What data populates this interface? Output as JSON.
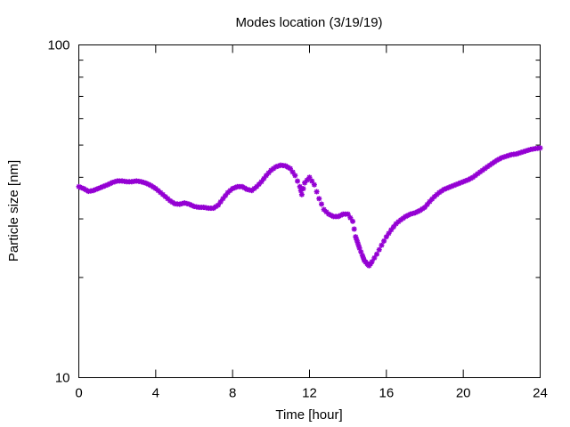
{
  "chart_data": {
    "type": "scatter",
    "title": "Modes location (3/19/19)",
    "xlabel": "Time [hour]",
    "ylabel": "Particle size [nm]",
    "xlim": [
      0,
      24
    ],
    "ylim": [
      10,
      100
    ],
    "yscale": "log",
    "grid": false,
    "legend": "none",
    "x_ticks": [
      0,
      4,
      8,
      12,
      16,
      20,
      24
    ],
    "y_ticks": [
      10,
      100
    ],
    "marker_color": "#9400d3",
    "series": [
      {
        "x": [
          0.0,
          0.25,
          0.5,
          0.75,
          1.0,
          1.25,
          1.5,
          1.75,
          2.0,
          2.25,
          2.5,
          2.75,
          3.0,
          3.25,
          3.5,
          3.75,
          4.0,
          4.25,
          4.5,
          4.75,
          5.0,
          5.25,
          5.5,
          5.75,
          6.0,
          6.25,
          6.5,
          6.75,
          7.0,
          7.25,
          7.5,
          7.75,
          8.0,
          8.25,
          8.5,
          8.75,
          9.0,
          9.25,
          9.5,
          9.75,
          10.0,
          10.25,
          10.5,
          10.75,
          11.0,
          11.25,
          11.5,
          11.6,
          11.75,
          12.0,
          12.25,
          12.5,
          12.75,
          13.0,
          13.25,
          13.5,
          13.75,
          14.0,
          14.25,
          14.4,
          14.5,
          14.6,
          14.75,
          14.85,
          15.0,
          15.1,
          15.25,
          15.5,
          15.75,
          16.0,
          16.25,
          16.5,
          16.75,
          17.0,
          17.25,
          17.5,
          17.75,
          18.0,
          18.25,
          18.5,
          18.75,
          19.0,
          19.25,
          19.5,
          19.75,
          20.0,
          20.25,
          20.5,
          20.75,
          21.0,
          21.25,
          21.5,
          21.75,
          22.0,
          22.25,
          22.5,
          22.75,
          23.0,
          23.25,
          23.5,
          23.75,
          24.0
        ],
        "y": [
          37.5,
          37.0,
          36.3,
          36.5,
          37.0,
          37.5,
          38.0,
          38.6,
          39.0,
          39.0,
          38.8,
          38.8,
          39.0,
          38.8,
          38.4,
          37.8,
          37.0,
          36.0,
          35.0,
          34.0,
          33.3,
          33.2,
          33.5,
          33.2,
          32.7,
          32.5,
          32.5,
          32.3,
          32.3,
          33.0,
          34.5,
          36.0,
          37.0,
          37.5,
          37.5,
          36.8,
          36.5,
          37.5,
          38.8,
          40.5,
          42.0,
          43.0,
          43.5,
          43.3,
          42.5,
          40.5,
          37.5,
          35.5,
          38.5,
          40.0,
          38.0,
          34.5,
          32.0,
          31.0,
          30.5,
          30.5,
          31.0,
          31.0,
          29.5,
          26.5,
          25.5,
          24.5,
          23.3,
          22.5,
          22.0,
          21.7,
          22.3,
          23.5,
          25.0,
          26.5,
          27.8,
          29.0,
          29.8,
          30.5,
          31.0,
          31.3,
          31.8,
          32.5,
          33.8,
          35.0,
          36.0,
          36.8,
          37.3,
          37.8,
          38.3,
          38.8,
          39.3,
          40.0,
          41.0,
          42.0,
          43.0,
          44.0,
          45.0,
          45.8,
          46.3,
          46.8,
          47.0,
          47.5,
          48.0,
          48.5,
          48.8,
          49.0
        ]
      }
    ]
  }
}
